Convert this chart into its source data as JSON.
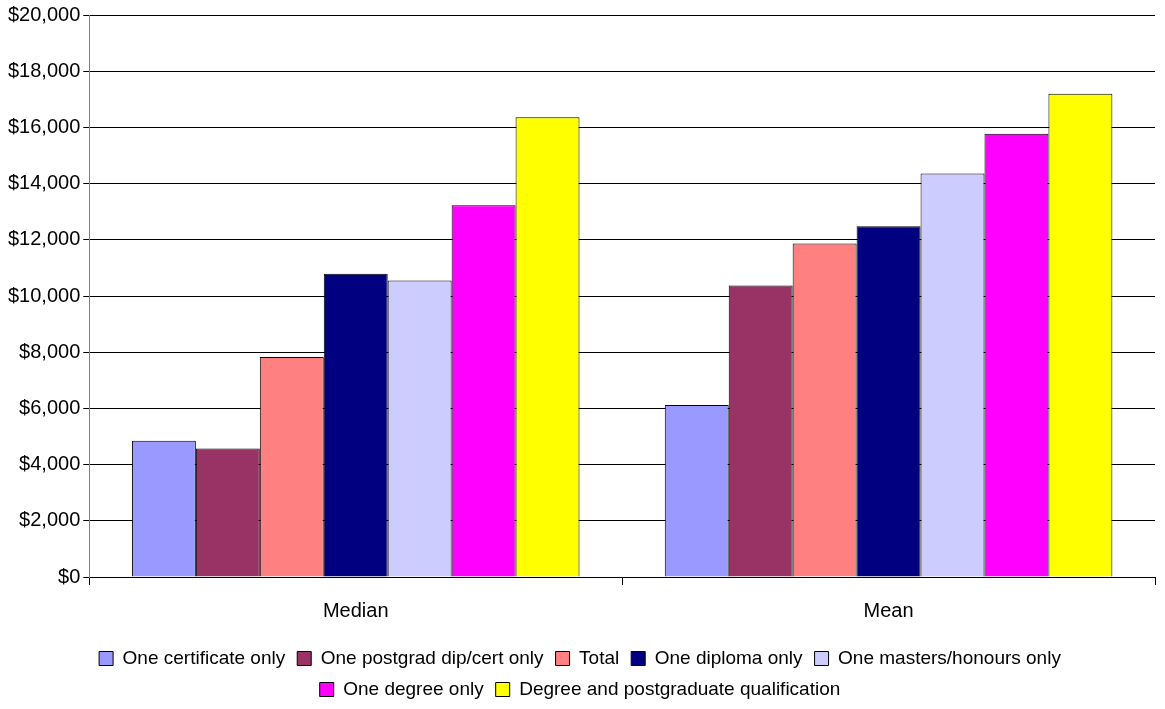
{
  "chart_data": {
    "type": "bar",
    "categories": [
      "Median",
      "Mean"
    ],
    "series": [
      {
        "name": "One certificate only",
        "color": "#9999ff",
        "values": [
          4850,
          6120
        ]
      },
      {
        "name": "One postgrad dip/cert only",
        "color": "#993366",
        "values": [
          4570,
          10370
        ]
      },
      {
        "name": "Total",
        "color": "#ff8080",
        "values": [
          7830,
          11870
        ]
      },
      {
        "name": "One diploma only",
        "color": "#000080",
        "values": [
          10790,
          12480
        ]
      },
      {
        "name": "One masters/honours only",
        "color": "#ccccff",
        "values": [
          10550,
          14360
        ]
      },
      {
        "name": "One degree only",
        "color": "#ff00ff",
        "values": [
          13230,
          15770
        ]
      },
      {
        "name": "Degree and postgraduate qualification",
        "color": "#ffff00",
        "values": [
          16360,
          17200
        ]
      }
    ],
    "ylim": [
      0,
      20000
    ],
    "yticks": [
      {
        "value": 0,
        "label": "$0"
      },
      {
        "value": 2000,
        "label": "$2,000"
      },
      {
        "value": 4000,
        "label": "$4,000"
      },
      {
        "value": 6000,
        "label": "$6,000"
      },
      {
        "value": 8000,
        "label": "$8,000"
      },
      {
        "value": 10000,
        "label": "$10,000"
      },
      {
        "value": 12000,
        "label": "$12,000"
      },
      {
        "value": 14000,
        "label": "$14,000"
      },
      {
        "value": 16000,
        "label": "$16,000"
      },
      {
        "value": 18000,
        "label": "$18,000"
      },
      {
        "value": 20000,
        "label": "$20,000"
      }
    ],
    "grid": "y",
    "legend": "bottom"
  }
}
